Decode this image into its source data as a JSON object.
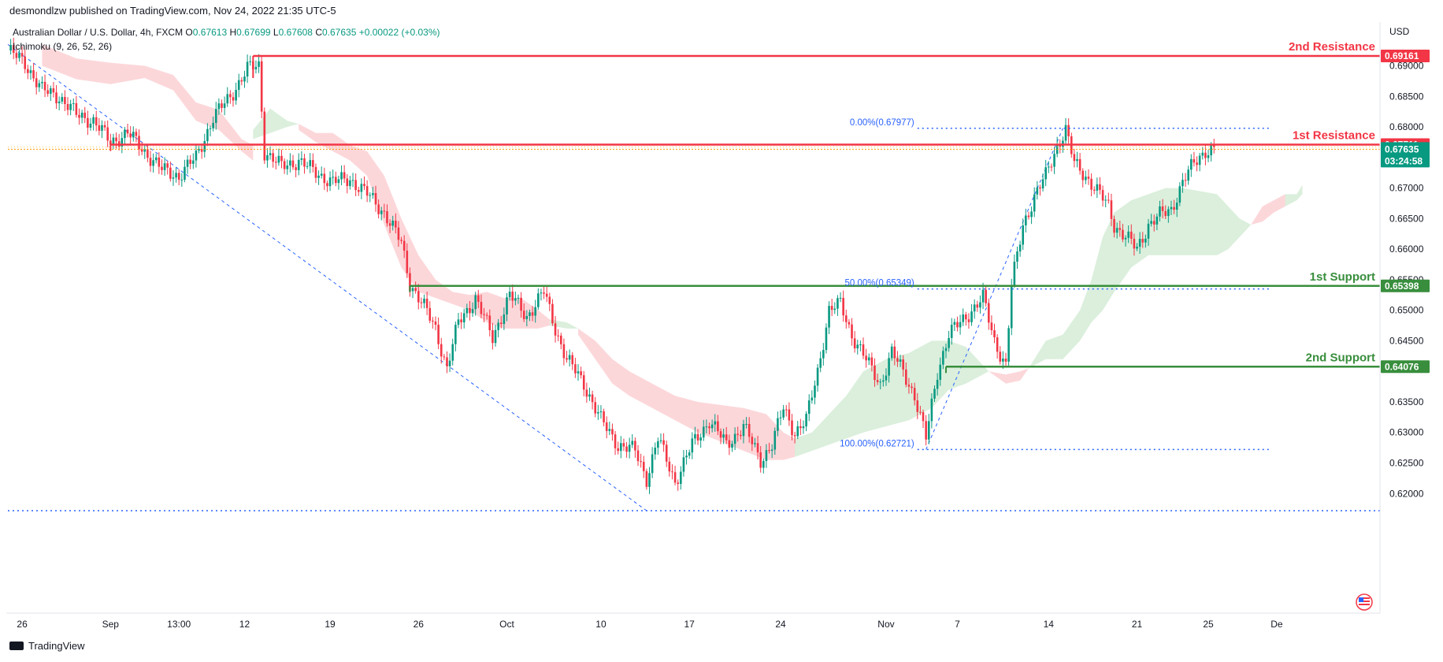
{
  "header": {
    "published": "desmondlzw published on TradingView.com, Nov 24, 2022 21:35 UTC-5",
    "symbol": "Australian Dollar / U.S. Dollar, 4h, FXCM",
    "open_label": "O",
    "open": "0.67613",
    "high_label": "H",
    "high": "0.67699",
    "low_label": "L",
    "low": "0.67608",
    "close_label": "C",
    "close": "0.67635",
    "change": "+0.00022 (+0.03%)",
    "indicator": "Ichimoku (9, 26, 52, 26)"
  },
  "footer": {
    "brand": "TradingView"
  },
  "chart_data": {
    "type": "candlestick",
    "currency": "USD",
    "y_ticks": [
      "0.69000",
      "0.68500",
      "0.68000",
      "0.67000",
      "0.66500",
      "0.66000",
      "0.65500",
      "0.65000",
      "0.64500",
      "0.63500",
      "0.63000",
      "0.62500",
      "0.62000"
    ],
    "ylim": [
      0.617,
      0.6965
    ],
    "x_ticks": [
      {
        "label": "26",
        "bar": 5
      },
      {
        "label": "Sep",
        "bar": 36
      },
      {
        "label": "13:00",
        "bar": 60
      },
      {
        "label": "12",
        "bar": 83
      },
      {
        "label": "19",
        "bar": 113
      },
      {
        "label": "26",
        "bar": 144
      },
      {
        "label": "Oct",
        "bar": 175
      },
      {
        "label": "10",
        "bar": 208
      },
      {
        "label": "17",
        "bar": 239
      },
      {
        "label": "24",
        "bar": 271
      },
      {
        "label": "Nov",
        "bar": 308
      },
      {
        "label": "7",
        "bar": 333
      },
      {
        "label": "14",
        "bar": 365
      },
      {
        "label": "21",
        "bar": 396
      },
      {
        "label": "25",
        "bar": 421
      },
      {
        "label": "De",
        "bar": 445
      }
    ],
    "levels": [
      {
        "name": "2nd Resistance",
        "value": 0.69161,
        "tag": "0.69161",
        "color": "#f23645",
        "start_bar": 86
      },
      {
        "name": "1st Resistance",
        "value": 0.67711,
        "tag": "0.67711",
        "color": "#f23645",
        "start_bar": 36
      },
      {
        "name": "1st Support",
        "value": 0.65398,
        "tag": "0.65398",
        "color": "#388e3c",
        "start_bar": 141
      },
      {
        "name": "2nd Support",
        "value": 0.64076,
        "tag": "0.64076",
        "color": "#388e3c",
        "start_bar": 329
      }
    ],
    "last_price": {
      "value": 0.67635,
      "tag": "0.67635",
      "countdown": "03:24:58",
      "color": "#089981"
    },
    "fibonacci": [
      {
        "label": "0.00%(0.67977)",
        "value": 0.67977
      },
      {
        "label": "50.00%(0.65349)",
        "value": 0.65349
      },
      {
        "label": "100.00%(0.62721)",
        "value": 0.62721
      }
    ],
    "fib_start_bar": 319,
    "fib_end_bar": 443,
    "trendlines": [
      {
        "from": {
          "bar": 0,
          "value": 0.6935
        },
        "to": {
          "bar": 224,
          "value": 0.6172
        }
      },
      {
        "from": {
          "bar": 322,
          "value": 0.62721
        },
        "to": {
          "bar": 370,
          "value": 0.67977
        }
      }
    ],
    "horizontal_ray": {
      "value": 0.6172
    },
    "anchors": [
      [
        0,
        0.6925
      ],
      [
        6,
        0.6905
      ],
      [
        12,
        0.686
      ],
      [
        18,
        0.685
      ],
      [
        24,
        0.682
      ],
      [
        30,
        0.681
      ],
      [
        36,
        0.6775
      ],
      [
        42,
        0.679
      ],
      [
        48,
        0.676
      ],
      [
        54,
        0.673
      ],
      [
        60,
        0.672
      ],
      [
        66,
        0.675
      ],
      [
        72,
        0.6815
      ],
      [
        78,
        0.685
      ],
      [
        84,
        0.6895
      ],
      [
        88,
        0.69
      ],
      [
        90,
        0.676
      ],
      [
        96,
        0.6735
      ],
      [
        102,
        0.6745
      ],
      [
        108,
        0.6725
      ],
      [
        114,
        0.671
      ],
      [
        120,
        0.6715
      ],
      [
        126,
        0.669
      ],
      [
        132,
        0.666
      ],
      [
        138,
        0.661
      ],
      [
        141,
        0.6545
      ],
      [
        146,
        0.6505
      ],
      [
        150,
        0.647
      ],
      [
        154,
        0.6405
      ],
      [
        158,
        0.648
      ],
      [
        164,
        0.652
      ],
      [
        170,
        0.6455
      ],
      [
        176,
        0.6525
      ],
      [
        182,
        0.649
      ],
      [
        188,
        0.653
      ],
      [
        192,
        0.647
      ],
      [
        196,
        0.642
      ],
      [
        202,
        0.638
      ],
      [
        208,
        0.632
      ],
      [
        214,
        0.628
      ],
      [
        220,
        0.627
      ],
      [
        224,
        0.6225
      ],
      [
        228,
        0.629
      ],
      [
        234,
        0.622
      ],
      [
        240,
        0.628
      ],
      [
        246,
        0.632
      ],
      [
        252,
        0.628
      ],
      [
        258,
        0.631
      ],
      [
        264,
        0.6255
      ],
      [
        268,
        0.628
      ],
      [
        272,
        0.634
      ],
      [
        276,
        0.63
      ],
      [
        280,
        0.632
      ],
      [
        284,
        0.64
      ],
      [
        288,
        0.65
      ],
      [
        292,
        0.651
      ],
      [
        296,
        0.646
      ],
      [
        302,
        0.641
      ],
      [
        306,
        0.638
      ],
      [
        310,
        0.643
      ],
      [
        314,
        0.64
      ],
      [
        318,
        0.636
      ],
      [
        322,
        0.629
      ],
      [
        326,
        0.64
      ],
      [
        330,
        0.646
      ],
      [
        334,
        0.648
      ],
      [
        338,
        0.65
      ],
      [
        342,
        0.652
      ],
      [
        346,
        0.645
      ],
      [
        350,
        0.641
      ],
      [
        352,
        0.654
      ],
      [
        356,
        0.664
      ],
      [
        360,
        0.6685
      ],
      [
        364,
        0.672
      ],
      [
        368,
        0.677
      ],
      [
        371,
        0.6795
      ],
      [
        374,
        0.674
      ],
      [
        378,
        0.672
      ],
      [
        382,
        0.6695
      ],
      [
        386,
        0.667
      ],
      [
        388,
        0.664
      ],
      [
        392,
        0.662
      ],
      [
        396,
        0.66
      ],
      [
        400,
        0.664
      ],
      [
        404,
        0.6655
      ],
      [
        408,
        0.6665
      ],
      [
        412,
        0.671
      ],
      [
        416,
        0.674
      ],
      [
        420,
        0.6762
      ],
      [
        423,
        0.6763
      ]
    ],
    "ichimoku_cloud": [
      {
        "color": "#f23645",
        "opacity": 0.2,
        "upper": [
          [
            12,
            0.6935
          ],
          [
            24,
            0.6912
          ],
          [
            36,
            0.6905
          ],
          [
            48,
            0.69
          ],
          [
            58,
            0.6885
          ],
          [
            66,
            0.684
          ],
          [
            74,
            0.6828
          ],
          [
            82,
            0.678
          ],
          [
            86,
            0.677
          ]
        ],
        "lower": [
          [
            12,
            0.69
          ],
          [
            24,
            0.6878
          ],
          [
            36,
            0.687
          ],
          [
            48,
            0.688
          ],
          [
            58,
            0.686
          ],
          [
            66,
            0.681
          ],
          [
            74,
            0.6795
          ],
          [
            82,
            0.676
          ],
          [
            86,
            0.6745
          ]
        ]
      },
      {
        "color": "#4caf50",
        "opacity": 0.2,
        "upper": [
          [
            86,
            0.6795
          ],
          [
            92,
            0.683
          ],
          [
            98,
            0.681
          ],
          [
            102,
            0.6805
          ]
        ],
        "lower": [
          [
            86,
            0.678
          ],
          [
            92,
            0.679
          ],
          [
            98,
            0.68
          ],
          [
            102,
            0.6805
          ]
        ]
      },
      {
        "color": "#f23645",
        "opacity": 0.2,
        "upper": [
          [
            102,
            0.6805
          ],
          [
            108,
            0.679
          ],
          [
            114,
            0.679
          ],
          [
            120,
            0.677
          ],
          [
            126,
            0.676
          ],
          [
            132,
            0.672
          ],
          [
            138,
            0.665
          ],
          [
            144,
            0.659
          ],
          [
            150,
            0.655
          ],
          [
            156,
            0.653
          ],
          [
            162,
            0.6525
          ],
          [
            168,
            0.653
          ],
          [
            174,
            0.652
          ],
          [
            180,
            0.652
          ],
          [
            186,
            0.65
          ],
          [
            190,
            0.6485
          ]
        ],
        "lower": [
          [
            102,
            0.6795
          ],
          [
            108,
            0.6775
          ],
          [
            114,
            0.676
          ],
          [
            120,
            0.6745
          ],
          [
            126,
            0.672
          ],
          [
            132,
            0.664
          ],
          [
            138,
            0.657
          ],
          [
            144,
            0.653
          ],
          [
            150,
            0.652
          ],
          [
            156,
            0.651
          ],
          [
            162,
            0.65
          ],
          [
            168,
            0.648
          ],
          [
            174,
            0.647
          ],
          [
            180,
            0.647
          ],
          [
            186,
            0.647
          ],
          [
            190,
            0.6475
          ]
        ]
      },
      {
        "color": "#4caf50",
        "opacity": 0.2,
        "upper": [
          [
            190,
            0.6485
          ],
          [
            196,
            0.648
          ],
          [
            200,
            0.647
          ]
        ],
        "lower": [
          [
            190,
            0.6475
          ],
          [
            196,
            0.647
          ],
          [
            200,
            0.647
          ]
        ]
      },
      {
        "color": "#f23645",
        "opacity": 0.2,
        "upper": [
          [
            200,
            0.647
          ],
          [
            206,
            0.645
          ],
          [
            212,
            0.642
          ],
          [
            218,
            0.64
          ],
          [
            226,
            0.638
          ],
          [
            234,
            0.636
          ],
          [
            242,
            0.635
          ],
          [
            250,
            0.6345
          ],
          [
            258,
            0.634
          ],
          [
            266,
            0.633
          ],
          [
            272,
            0.63
          ],
          [
            276,
            0.629
          ]
        ],
        "lower": [
          [
            200,
            0.646
          ],
          [
            206,
            0.642
          ],
          [
            212,
            0.638
          ],
          [
            218,
            0.636
          ],
          [
            226,
            0.634
          ],
          [
            234,
            0.632
          ],
          [
            242,
            0.63
          ],
          [
            250,
            0.6285
          ],
          [
            258,
            0.627
          ],
          [
            266,
            0.6255
          ],
          [
            272,
            0.6255
          ],
          [
            276,
            0.626
          ]
        ]
      },
      {
        "color": "#4caf50",
        "opacity": 0.2,
        "upper": [
          [
            276,
            0.629
          ],
          [
            282,
            0.63
          ],
          [
            288,
            0.633
          ],
          [
            294,
            0.636
          ],
          [
            300,
            0.64
          ],
          [
            308,
            0.642
          ],
          [
            316,
            0.643
          ],
          [
            324,
            0.645
          ],
          [
            330,
            0.645
          ],
          [
            336,
            0.644
          ],
          [
            340,
            0.642
          ],
          [
            344,
            0.64
          ]
        ],
        "lower": [
          [
            276,
            0.626
          ],
          [
            282,
            0.627
          ],
          [
            288,
            0.628
          ],
          [
            294,
            0.629
          ],
          [
            300,
            0.63
          ],
          [
            308,
            0.631
          ],
          [
            316,
            0.632
          ],
          [
            324,
            0.634
          ],
          [
            330,
            0.637
          ],
          [
            336,
            0.638
          ],
          [
            340,
            0.639
          ],
          [
            344,
            0.64
          ]
        ]
      },
      {
        "color": "#f23645",
        "opacity": 0.2,
        "upper": [
          [
            344,
            0.64
          ],
          [
            350,
            0.6395
          ],
          [
            355,
            0.64
          ],
          [
            358,
            0.6405
          ]
        ],
        "lower": [
          [
            344,
            0.64
          ],
          [
            350,
            0.638
          ],
          [
            355,
            0.6385
          ],
          [
            358,
            0.6405
          ]
        ]
      },
      {
        "color": "#4caf50",
        "opacity": 0.2,
        "upper": [
          [
            358,
            0.6405
          ],
          [
            364,
            0.645
          ],
          [
            370,
            0.646
          ],
          [
            376,
            0.65
          ],
          [
            380,
            0.655
          ],
          [
            384,
            0.662
          ],
          [
            388,
            0.666
          ],
          [
            394,
            0.668
          ],
          [
            400,
            0.669
          ],
          [
            406,
            0.67
          ],
          [
            412,
            0.67
          ],
          [
            418,
            0.6695
          ],
          [
            424,
            0.669
          ],
          [
            428,
            0.667
          ],
          [
            432,
            0.665
          ],
          [
            436,
            0.664
          ]
        ],
        "lower": [
          [
            358,
            0.6405
          ],
          [
            364,
            0.642
          ],
          [
            370,
            0.642
          ],
          [
            376,
            0.645
          ],
          [
            380,
            0.648
          ],
          [
            384,
            0.65
          ],
          [
            388,
            0.653
          ],
          [
            394,
            0.657
          ],
          [
            400,
            0.659
          ],
          [
            406,
            0.659
          ],
          [
            412,
            0.659
          ],
          [
            418,
            0.659
          ],
          [
            424,
            0.659
          ],
          [
            428,
            0.66
          ],
          [
            432,
            0.662
          ],
          [
            436,
            0.664
          ]
        ]
      },
      {
        "color": "#f23645",
        "opacity": 0.2,
        "upper": [
          [
            436,
            0.664
          ],
          [
            440,
            0.667
          ],
          [
            444,
            0.668
          ],
          [
            448,
            0.669
          ]
        ],
        "lower": [
          [
            436,
            0.664
          ],
          [
            440,
            0.6645
          ],
          [
            444,
            0.666
          ],
          [
            448,
            0.667
          ]
        ]
      },
      {
        "color": "#4caf50",
        "opacity": 0.2,
        "upper": [
          [
            448,
            0.669
          ],
          [
            452,
            0.669
          ],
          [
            454,
            0.6705
          ]
        ],
        "lower": [
          [
            448,
            0.667
          ],
          [
            452,
            0.668
          ],
          [
            454,
            0.669
          ]
        ]
      }
    ]
  }
}
